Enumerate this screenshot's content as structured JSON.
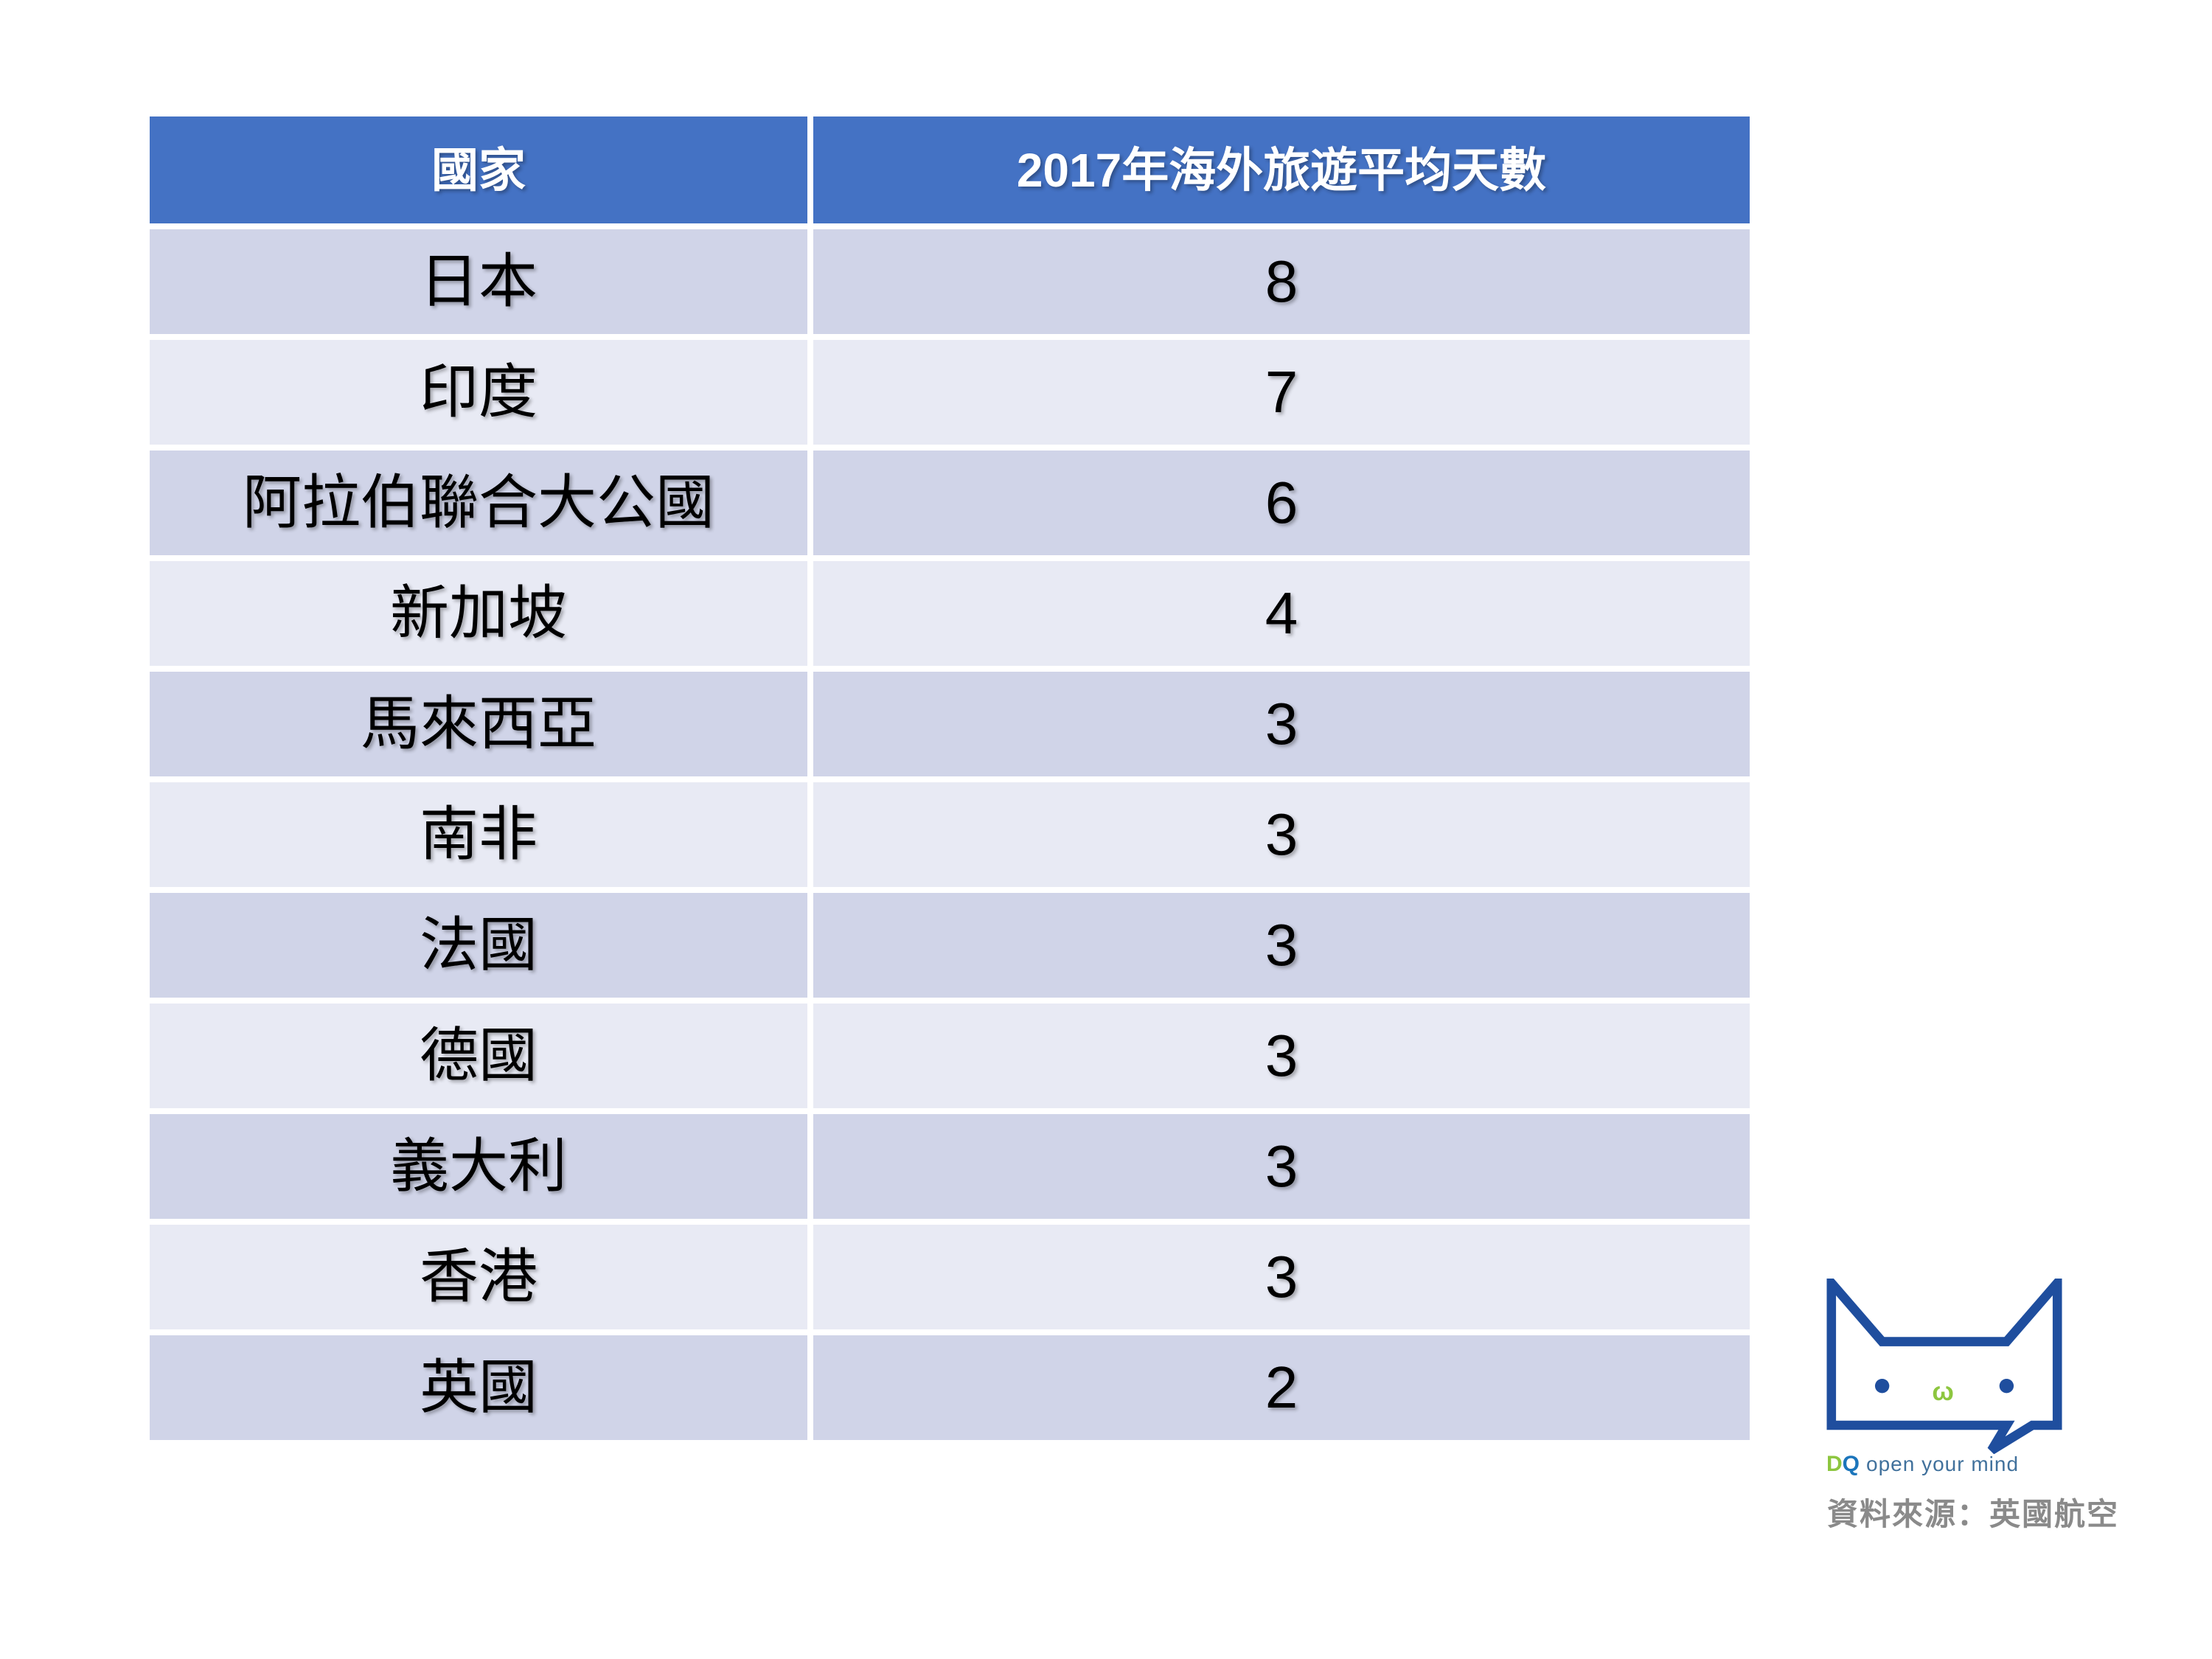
{
  "chart_data": {
    "type": "table",
    "title": "2017年海外旅遊平均天數",
    "columns": [
      "國家",
      "2017年海外旅遊平均天數"
    ],
    "categories": [
      "日本",
      "印度",
      "阿拉伯聯合大公國",
      "新加坡",
      "馬來西亞",
      "南非",
      "法國",
      "德國",
      "義大利",
      "香港",
      "英國"
    ],
    "values": [
      8,
      7,
      6,
      4,
      3,
      3,
      3,
      3,
      3,
      3,
      2
    ]
  },
  "table": {
    "headers": [
      "國家",
      "2017年海外旅遊平均天數"
    ],
    "rows": [
      {
        "country": "日本",
        "days": "8"
      },
      {
        "country": "印度",
        "days": "7"
      },
      {
        "country": "阿拉伯聯合大公國",
        "days": "6"
      },
      {
        "country": "新加坡",
        "days": "4"
      },
      {
        "country": "馬來西亞",
        "days": "3"
      },
      {
        "country": "南非",
        "days": "3"
      },
      {
        "country": "法國",
        "days": "3"
      },
      {
        "country": "德國",
        "days": "3"
      },
      {
        "country": "義大利",
        "days": "3"
      },
      {
        "country": "香港",
        "days": "3"
      },
      {
        "country": "英國",
        "days": "2"
      }
    ]
  },
  "logo": {
    "d": "D",
    "q": "Q",
    "tagline": "open your mind",
    "mouth": "ω"
  },
  "source": {
    "text": "資料來源：英國航空"
  },
  "colors": {
    "header_bg": "#4472C4",
    "band_dark": "#D0D4E8",
    "band_light": "#E8EAF4",
    "header_text": "#FFFFFF",
    "body_text": "#000000",
    "logo_blue": "#1F4E9E",
    "logo_green": "#8DC63F",
    "brand_q_blue": "#1B75BB",
    "tagline_blue": "#41719C",
    "source_gray": "#8A8A8A"
  }
}
